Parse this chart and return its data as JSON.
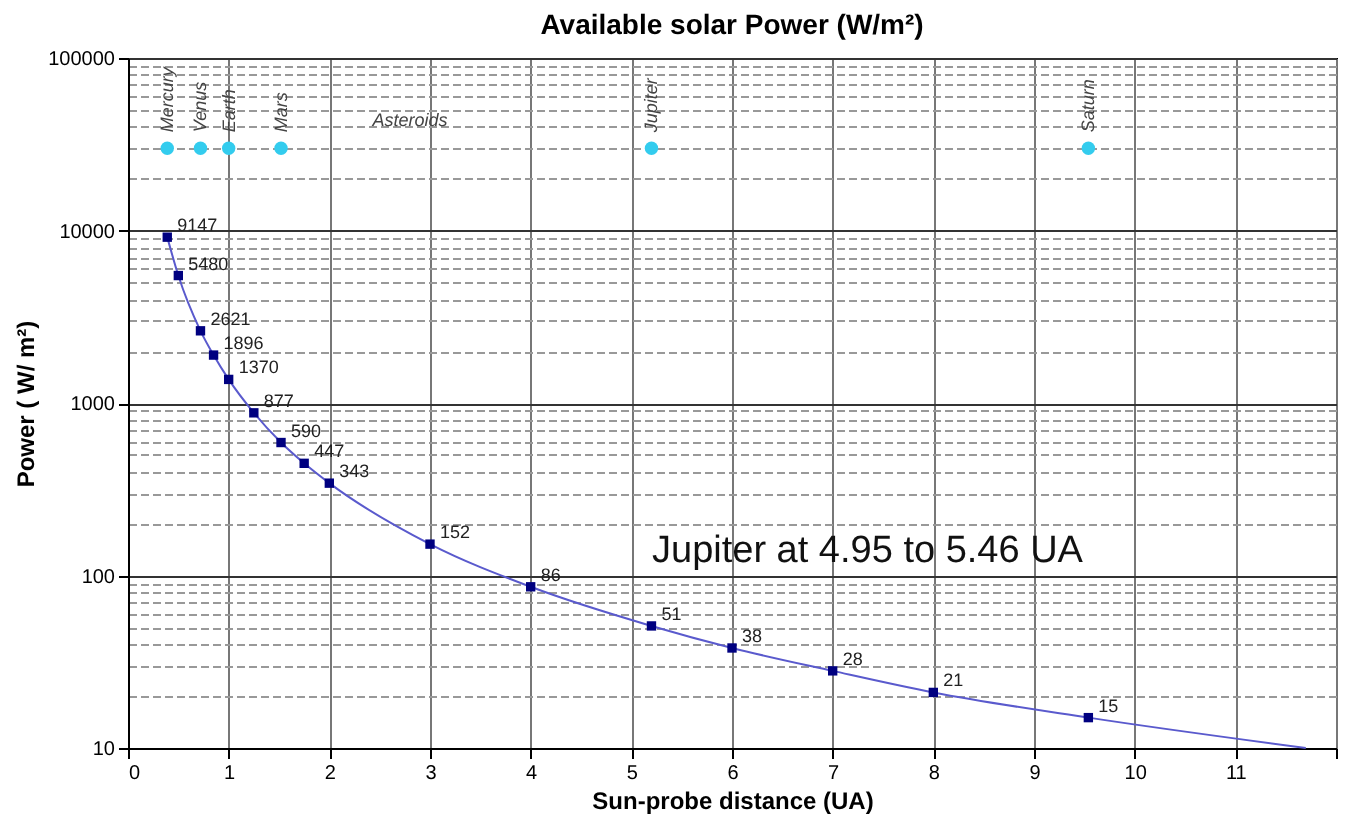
{
  "chart_data": {
    "type": "line",
    "title": "Available solar Power (W/m²)",
    "xlabel": "Sun-probe distance (UA)",
    "ylabel": "Power ( W/ m²)",
    "series": [
      {
        "type": "line",
        "color": "#5a5acd",
        "marker": "none",
        "x": [
          0.39,
          0.5,
          0.72,
          0.85,
          1.0,
          1.25,
          1.52,
          1.75,
          2.0,
          3,
          4,
          5.2,
          6,
          7,
          8,
          9.54,
          11.7
        ],
        "values": [
          9147,
          5480,
          2621,
          1896,
          1370,
          877,
          590,
          447,
          343,
          152,
          86,
          51,
          38,
          28,
          21,
          15,
          10
        ]
      },
      {
        "type": "scatter",
        "color": "#000080",
        "marker": "square",
        "x": [
          0.39,
          0.5,
          0.72,
          0.85,
          1.0,
          1.25,
          1.52,
          1.75,
          2.0,
          3,
          4,
          5.2,
          6,
          7,
          8,
          9.54
        ],
        "values": [
          9147,
          5480,
          2621,
          1896,
          1370,
          877,
          590,
          447,
          343,
          152,
          86,
          51,
          38,
          28,
          21,
          15
        ],
        "value_labels": [
          "9147",
          "5480",
          "2621",
          "1896",
          "1370",
          "877",
          "590",
          "447",
          "343",
          "152",
          "86",
          "51",
          "38",
          "28",
          "21",
          "15"
        ]
      },
      {
        "type": "scatter",
        "color": "#33ccee",
        "marker": "circle",
        "x": [
          0.39,
          0.72,
          1.0,
          1.52,
          5.2,
          9.54
        ],
        "values": [
          30000,
          30000,
          30000,
          30000,
          30000,
          30000
        ],
        "value_labels": [
          "Mercury",
          "Venus",
          "Earth",
          "Mars",
          "Jupiter",
          "Saturn"
        ]
      }
    ],
    "annotations": [
      "Asteroids",
      "Jupiter at 4.95 to 5.46 UA"
    ],
    "xlim": [
      0,
      12
    ],
    "xticks": [
      0,
      1,
      2,
      3,
      4,
      5,
      6,
      7,
      8,
      9,
      10,
      11,
      {
        "value": 12,
        "label": null
      }
    ],
    "ylim": [
      10,
      100000
    ],
    "log": "y",
    "yticks": [
      10,
      {
        "value": 20,
        "label": null
      },
      {
        "value": 30,
        "label": null
      },
      {
        "value": 40,
        "label": null
      },
      {
        "value": 50,
        "label": null
      },
      {
        "value": 60,
        "label": null
      },
      {
        "value": 70,
        "label": null
      },
      {
        "value": 80,
        "label": null
      },
      {
        "value": 90,
        "label": null
      },
      100,
      {
        "value": 200,
        "label": null
      },
      {
        "value": 300,
        "label": null
      },
      {
        "value": 400,
        "label": null
      },
      {
        "value": 500,
        "label": null
      },
      {
        "value": 600,
        "label": null
      },
      {
        "value": 700,
        "label": null
      },
      {
        "value": 800,
        "label": null
      },
      {
        "value": 900,
        "label": null
      },
      1000,
      {
        "value": 2000,
        "label": null
      },
      {
        "value": 3000,
        "label": null
      },
      {
        "value": 4000,
        "label": null
      },
      {
        "value": 5000,
        "label": null
      },
      {
        "value": 6000,
        "label": null
      },
      {
        "value": 7000,
        "label": null
      },
      {
        "value": 8000,
        "label": null
      },
      {
        "value": 9000,
        "label": null
      },
      10000,
      {
        "value": 20000,
        "label": null
      },
      {
        "value": 30000,
        "label": null
      },
      {
        "value": 40000,
        "label": null
      },
      {
        "value": 50000,
        "label": null
      },
      {
        "value": 60000,
        "label": null
      },
      {
        "value": 70000,
        "label": null
      },
      {
        "value": 80000,
        "label": null
      },
      {
        "value": 90000,
        "label": null
      },
      100000
    ],
    "grid": true
  }
}
